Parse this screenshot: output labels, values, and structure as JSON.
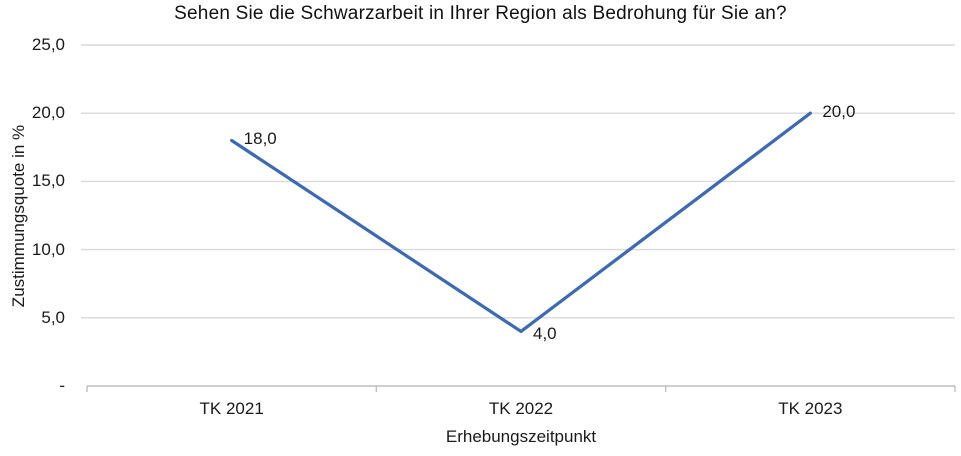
{
  "title": "Sehen Sie die Schwarzarbeit in Ihrer Region als Bedrohung für Sie an?",
  "chart_data": {
    "type": "line",
    "title": "Sehen Sie die Schwarzarbeit in Ihrer Region als Bedrohung für Sie an?",
    "categories": [
      "TK 2021",
      "TK 2022",
      "TK 2023"
    ],
    "values": [
      18.0,
      4.0,
      20.0
    ],
    "data_labels": [
      "18,0",
      "4,0",
      "20,0"
    ],
    "xlabel": "Erhebungszeitpunkt",
    "ylabel": "Zustimmungsquote in %",
    "ylim": [
      0,
      25
    ],
    "ytick_step": 5,
    "ytick_labels": [
      "25,0",
      "20,0",
      "15,0",
      "10,0",
      "5,0",
      "-"
    ],
    "grid": true,
    "legend_position": "none",
    "line_color": "#3D6BB3",
    "gridline_color": "#D9D9D9",
    "axis_color": "#BFBFBF",
    "text_color": "#1a1a1a"
  }
}
